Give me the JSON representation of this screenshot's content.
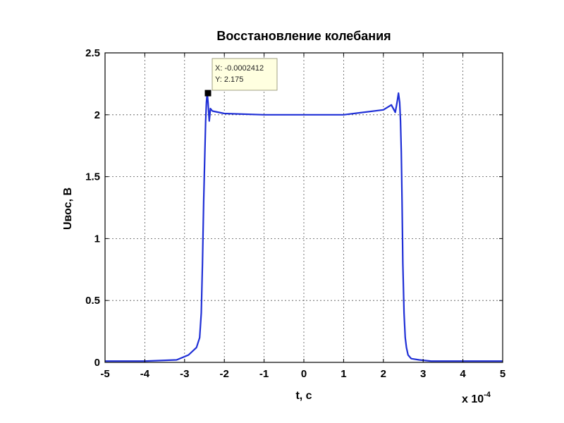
{
  "chart_data": {
    "type": "line",
    "title": "Восстановление колебания",
    "xlabel": "t, c",
    "ylabel": "Uвос, В",
    "x_exponent_label": "x 10",
    "x_exponent_power": "-4",
    "xlim": [
      -5,
      5
    ],
    "ylim": [
      0,
      2.5
    ],
    "x_ticks": [
      -5,
      -4,
      -3,
      -2,
      -1,
      0,
      1,
      2,
      3,
      4,
      5
    ],
    "x_tick_labels": [
      "-5",
      "-4",
      "-3",
      "-2",
      "-1",
      "0",
      "1",
      "2",
      "3",
      "4",
      "5"
    ],
    "y_ticks": [
      0,
      0.5,
      1,
      1.5,
      2,
      2.5
    ],
    "y_tick_labels": [
      "0",
      "0.5",
      "1",
      "1.5",
      "2",
      "2.5"
    ],
    "grid": true,
    "line_color": "#1f2fd6",
    "series": [
      {
        "x": [
          -5.0,
          -4.0,
          -3.2,
          -2.9,
          -2.7,
          -2.62,
          -2.58,
          -2.55,
          -2.52,
          -2.49,
          -2.47,
          -2.45,
          -2.43,
          -2.41,
          -2.38,
          -2.35,
          -2.3,
          -2.0,
          -1.0,
          0.0,
          1.0,
          2.0,
          2.2,
          2.3,
          2.35,
          2.38,
          2.41,
          2.43,
          2.45,
          2.47,
          2.49,
          2.52,
          2.55,
          2.58,
          2.62,
          2.7,
          2.9,
          3.2,
          4.0,
          5.0
        ],
        "y": [
          0.01,
          0.01,
          0.02,
          0.06,
          0.12,
          0.2,
          0.4,
          0.8,
          1.3,
          1.7,
          1.95,
          2.1,
          2.175,
          2.1,
          1.95,
          2.05,
          2.03,
          2.01,
          2.0,
          2.0,
          2.0,
          2.04,
          2.08,
          2.02,
          2.11,
          2.175,
          2.1,
          1.95,
          1.7,
          1.3,
          0.8,
          0.4,
          0.2,
          0.12,
          0.06,
          0.03,
          0.02,
          0.01,
          0.01,
          0.01
        ]
      }
    ],
    "datatip": {
      "x_text": "X: -0.0002412",
      "y_text": "Y: 2.175",
      "x": -2.412,
      "y": 2.175
    }
  }
}
